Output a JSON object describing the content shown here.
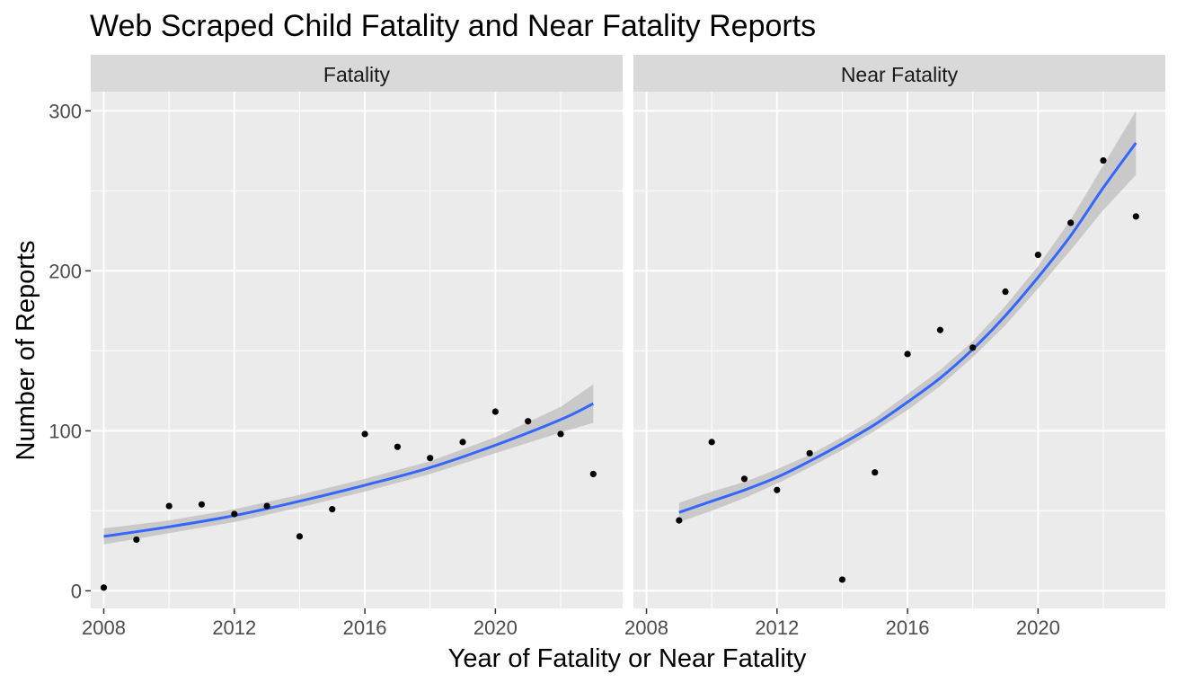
{
  "chart_data": {
    "type": "scatter",
    "title": "Web Scraped Child Fatality and Near Fatality Reports",
    "xlabel": "Year of Fatality or Near Fatality",
    "ylabel": "Number of Reports",
    "xlim": [
      2007.6,
      2023.9
    ],
    "ylim": [
      -11,
      312
    ],
    "x_ticks": [
      2008,
      2012,
      2016,
      2020
    ],
    "y_ticks": [
      0,
      100,
      200,
      300
    ],
    "grid": true,
    "background_color": "#EBEBEB",
    "strip_color": "#D9D9D9",
    "point_color": "#000000",
    "smooth_color": "#3366FF",
    "ribbon_color": "#BEBEBE",
    "panels": [
      {
        "label": "Fatality",
        "points": [
          {
            "x": 2008,
            "y": 2
          },
          {
            "x": 2009,
            "y": 32
          },
          {
            "x": 2010,
            "y": 53
          },
          {
            "x": 2011,
            "y": 54
          },
          {
            "x": 2012,
            "y": 48
          },
          {
            "x": 2013,
            "y": 53
          },
          {
            "x": 2014,
            "y": 34
          },
          {
            "x": 2015,
            "y": 51
          },
          {
            "x": 2016,
            "y": 98
          },
          {
            "x": 2017,
            "y": 90
          },
          {
            "x": 2018,
            "y": 83
          },
          {
            "x": 2019,
            "y": 93
          },
          {
            "x": 2020,
            "y": 112
          },
          {
            "x": 2021,
            "y": 106
          },
          {
            "x": 2022,
            "y": 98
          },
          {
            "x": 2023,
            "y": 73
          }
        ],
        "smooth": {
          "x": [
            2008,
            2010,
            2012,
            2014,
            2016,
            2018,
            2020,
            2022,
            2023
          ],
          "y": [
            34,
            40,
            47,
            56,
            66,
            77,
            91,
            107,
            117
          ],
          "ymin": [
            29,
            36,
            43,
            52,
            62,
            73,
            86,
            99,
            105
          ],
          "ymax": [
            39,
            44,
            51,
            60,
            70,
            81,
            96,
            115,
            129
          ]
        }
      },
      {
        "label": "Near Fatality",
        "points": [
          {
            "x": 2009,
            "y": 44
          },
          {
            "x": 2010,
            "y": 93
          },
          {
            "x": 2011,
            "y": 70
          },
          {
            "x": 2012,
            "y": 63
          },
          {
            "x": 2013,
            "y": 86
          },
          {
            "x": 2014,
            "y": 7
          },
          {
            "x": 2015,
            "y": 74
          },
          {
            "x": 2016,
            "y": 148
          },
          {
            "x": 2017,
            "y": 163
          },
          {
            "x": 2018,
            "y": 152
          },
          {
            "x": 2019,
            "y": 187
          },
          {
            "x": 2020,
            "y": 210
          },
          {
            "x": 2021,
            "y": 230
          },
          {
            "x": 2022,
            "y": 269
          },
          {
            "x": 2023,
            "y": 234
          }
        ],
        "smooth": {
          "x": [
            2009,
            2010,
            2011,
            2012,
            2013,
            2014,
            2015,
            2016,
            2017,
            2018,
            2019,
            2020,
            2021,
            2022,
            2023
          ],
          "y": [
            49,
            56,
            63,
            71,
            81,
            92,
            104,
            118,
            133,
            151,
            172,
            196,
            222,
            252,
            280
          ],
          "ymin": [
            43,
            50,
            58,
            67,
            77,
            88,
            100,
            113,
            128,
            146,
            166,
            189,
            213,
            238,
            260
          ],
          "ymax": [
            55,
            62,
            68,
            76,
            85,
            96,
            108,
            123,
            138,
            156,
            178,
            203,
            232,
            266,
            300
          ]
        }
      }
    ]
  }
}
